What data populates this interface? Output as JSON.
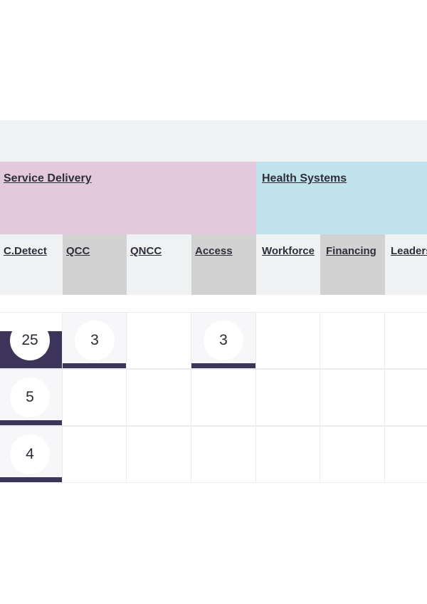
{
  "groups": {
    "service_delivery": "Service Delivery",
    "health_systems": "Health Systems"
  },
  "columns": [
    "C.Detect",
    "QCC",
    "QNCC",
    "Access",
    "Workforce",
    "Financing",
    "Leaders"
  ],
  "grid": {
    "row1": [
      "25",
      "3",
      "",
      "3",
      "",
      "",
      ""
    ],
    "row2": [
      "5",
      "",
      "",
      "",
      "",
      "",
      ""
    ],
    "row3": [
      "4",
      "",
      "",
      "",
      "",
      "",
      ""
    ]
  },
  "colors": {
    "service_delivery": "#e3c9dd",
    "health_systems": "#c1e3ec",
    "bar": "#3d3459"
  }
}
